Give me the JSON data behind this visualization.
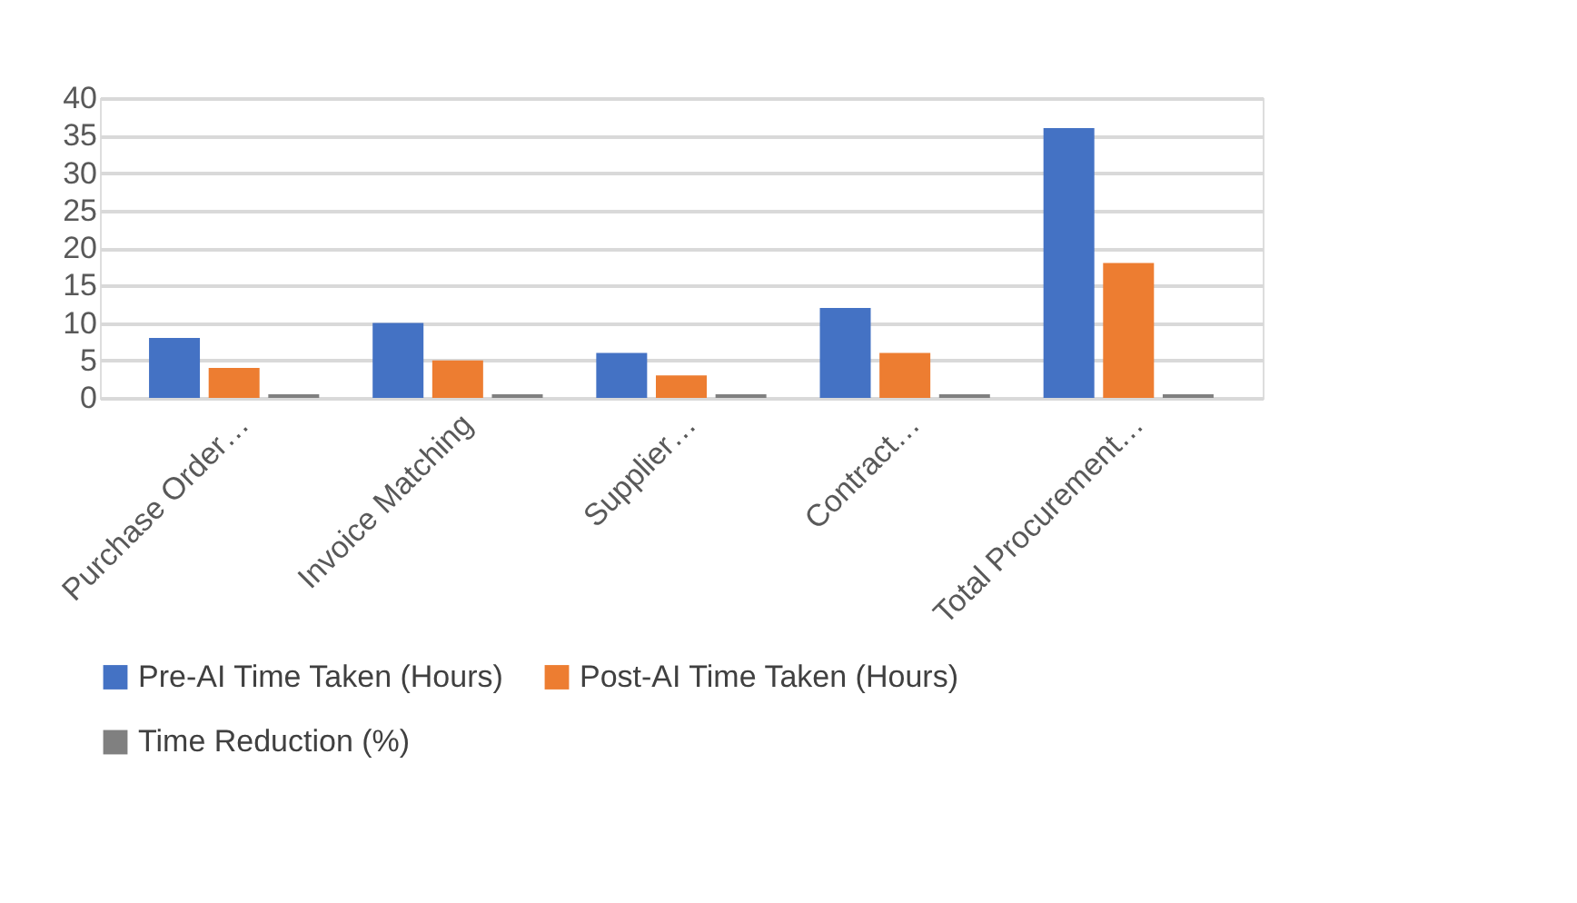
{
  "chart_data": {
    "type": "bar",
    "categories": [
      "Purchase Order…",
      "Invoice Matching",
      "Supplier…",
      "Contract…",
      "Total Procurement…"
    ],
    "series": [
      {
        "name": "Pre-AI Time Taken (Hours)",
        "color": "#4472c4",
        "values": [
          8,
          10,
          6,
          12,
          36
        ]
      },
      {
        "name": "Post-AI Time Taken (Hours)",
        "color": "#ed7d31",
        "values": [
          4,
          5,
          3,
          6,
          18
        ]
      },
      {
        "name": "Time Reduction (%)",
        "color": "#808080",
        "values": [
          0.5,
          0.5,
          0.5,
          0.5,
          0.5
        ]
      }
    ],
    "ylim": [
      0,
      40
    ],
    "yticks": [
      0,
      5,
      10,
      15,
      20,
      25,
      30,
      35,
      40
    ],
    "grid": "y",
    "legend": "bottom"
  }
}
